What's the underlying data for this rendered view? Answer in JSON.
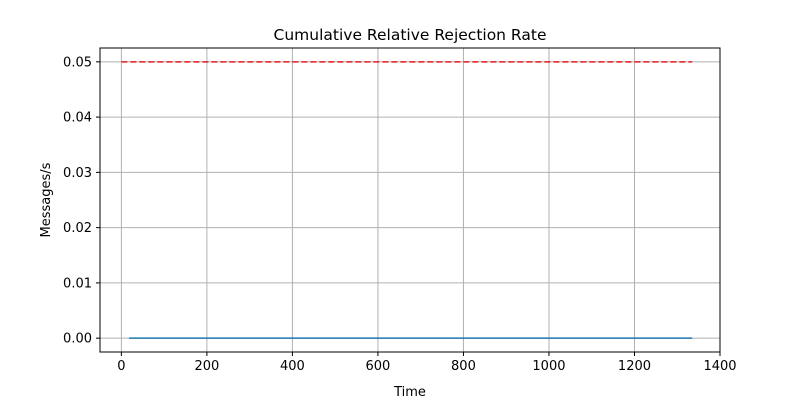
{
  "chart_data": {
    "type": "line",
    "title": "Cumulative Relative Rejection Rate",
    "xlabel": "Time",
    "ylabel": "Messages/s",
    "xlim": [
      -50,
      1400
    ],
    "ylim": [
      -0.0025,
      0.0525
    ],
    "x_ticks": [
      0,
      200,
      400,
      600,
      800,
      1000,
      1200,
      1400
    ],
    "x_tick_labels": [
      "0",
      "200",
      "400",
      "600",
      "800",
      "1000",
      "1200",
      "1400"
    ],
    "y_ticks": [
      0.0,
      0.01,
      0.02,
      0.03,
      0.04,
      0.05
    ],
    "y_tick_labels": [
      "0.00",
      "0.01",
      "0.02",
      "0.03",
      "0.04",
      "0.05"
    ],
    "grid": true,
    "legend": "none",
    "series": [
      {
        "color": "#1f77b4",
        "style": "solid",
        "x": [
          18,
          1335
        ],
        "y": [
          0.0,
          0.0
        ]
      },
      {
        "color": "#e41a1c",
        "style": "dashed",
        "x": [
          0,
          1335
        ],
        "y": [
          0.05,
          0.05
        ]
      }
    ]
  }
}
